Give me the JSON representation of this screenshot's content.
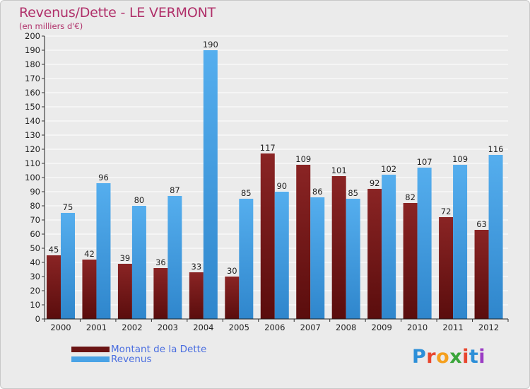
{
  "header": {
    "title": "Revenus/Dette - LE VERMONT",
    "subtitle": "(en milliers d'€)"
  },
  "legend": {
    "dette_label": "Montant de la Dette",
    "revenus_label": "Revenus"
  },
  "logo": {
    "letters": [
      "P",
      "r",
      "o",
      "x",
      "i",
      "t",
      "i"
    ],
    "colors": [
      "#2d8fd8",
      "#e8462e",
      "#f5a01f",
      "#3aa53a",
      "#e8462e",
      "#2d8fd8",
      "#9b3cc4"
    ]
  },
  "colors": {
    "dette": "#7a1a1a",
    "revenus": "#4aa3e6",
    "grid": "#ffffff",
    "background": "#ebebeb"
  },
  "chart_data": {
    "type": "bar",
    "title": "Revenus/Dette - LE VERMONT",
    "ylabel": "(en milliers d'€)",
    "xlabel": "",
    "ylim": [
      0,
      200
    ],
    "ytick_step": 10,
    "grid": true,
    "legend_position": "bottom-left",
    "categories": [
      "2000",
      "2001",
      "2002",
      "2003",
      "2004",
      "2005",
      "2006",
      "2007",
      "2008",
      "2009",
      "2010",
      "2011",
      "2012"
    ],
    "series": [
      {
        "name": "Montant de la Dette",
        "values": [
          45,
          42,
          39,
          36,
          33,
          30,
          117,
          109,
          101,
          92,
          82,
          72,
          63
        ]
      },
      {
        "name": "Revenus",
        "values": [
          75,
          96,
          80,
          87,
          190,
          85,
          90,
          86,
          85,
          102,
          107,
          109,
          116
        ]
      }
    ]
  }
}
